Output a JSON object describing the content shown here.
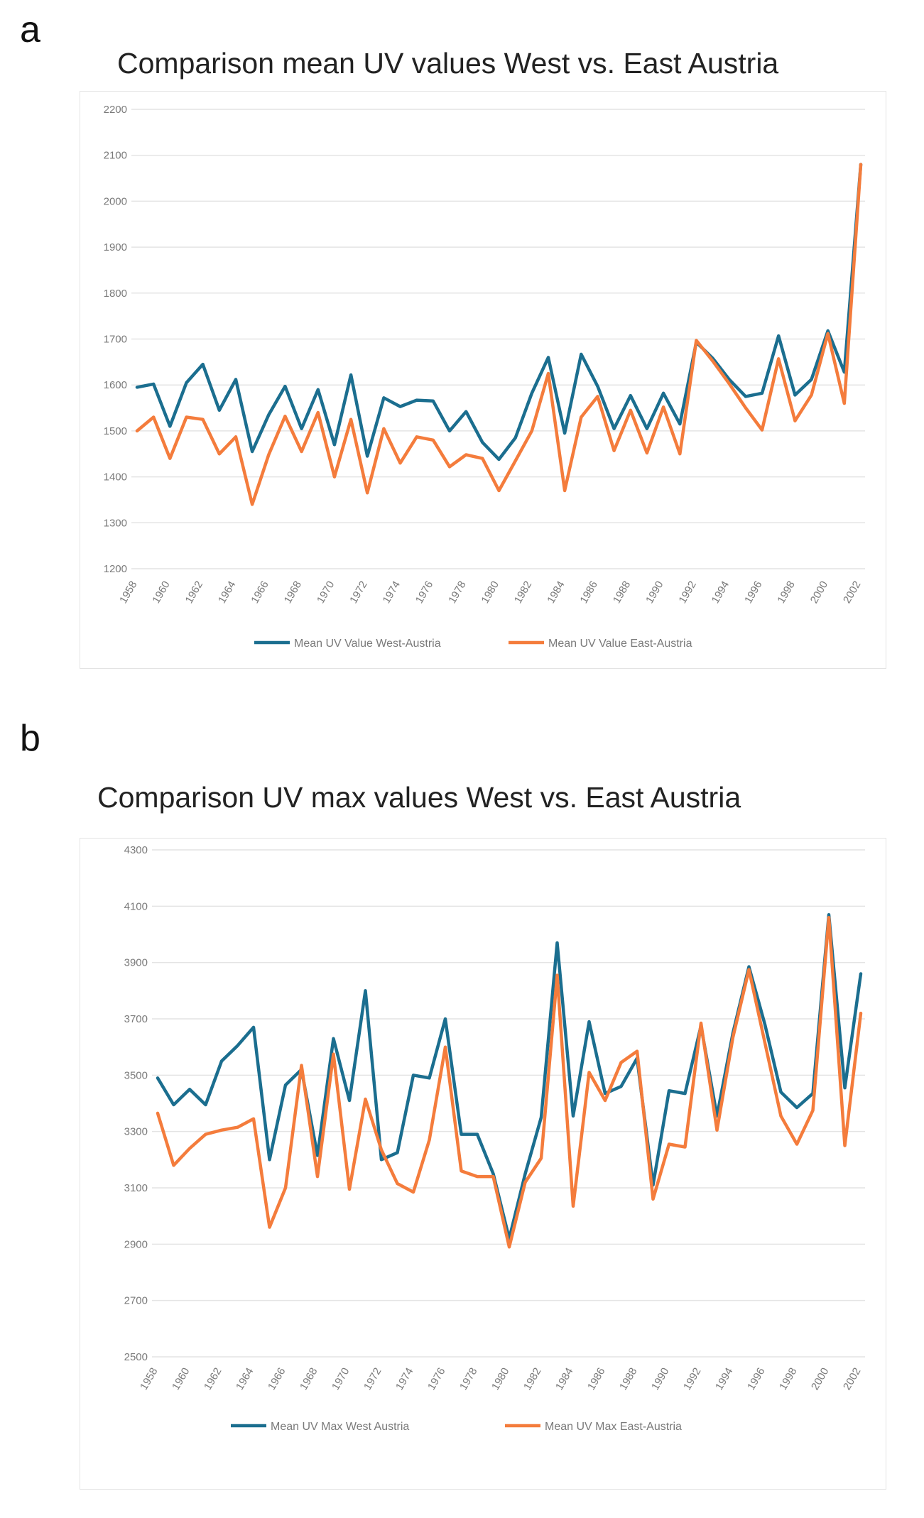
{
  "panels": [
    {
      "label": "a",
      "title": "Comparison mean UV values West vs. East Austria",
      "chart_data": {
        "type": "line",
        "title": "Comparison mean UV values West vs. East Austria",
        "x": [
          1958,
          1959,
          1960,
          1961,
          1962,
          1963,
          1964,
          1965,
          1966,
          1967,
          1968,
          1969,
          1970,
          1971,
          1972,
          1973,
          1974,
          1975,
          1976,
          1977,
          1978,
          1979,
          1980,
          1981,
          1982,
          1983,
          1984,
          1985,
          1986,
          1987,
          1988,
          1989,
          1990,
          1991,
          1992,
          1993,
          1994,
          1995,
          1996,
          1997,
          1998,
          1999,
          2000,
          2001,
          2002
        ],
        "x_tick_labels": [
          "1958",
          "1960",
          "1962",
          "1964",
          "1966",
          "1968",
          "1970",
          "1972",
          "1974",
          "1976",
          "1978",
          "1980",
          "1982",
          "1984",
          "1986",
          "1988",
          "1990",
          "1992",
          "1994",
          "1996",
          "1998",
          "2000",
          "2002"
        ],
        "ylim": [
          1200,
          2200
        ],
        "y_ticks": [
          1200,
          1300,
          1400,
          1500,
          1600,
          1700,
          1800,
          1900,
          2000,
          2100,
          2200
        ],
        "grid": true,
        "legend_position": "bottom",
        "series": [
          {
            "name": "Mean UV Value West-Austria",
            "color": "#1b6e8f",
            "values": [
              1595,
              1602,
              1510,
              1605,
              1645,
              1545,
              1612,
              1455,
              1535,
              1597,
              1505,
              1590,
              1470,
              1622,
              1445,
              1572,
              1553,
              1567,
              1565,
              1500,
              1542,
              1475,
              1438,
              1485,
              1582,
              1660,
              1495,
              1667,
              1597,
              1505,
              1577,
              1505,
              1582,
              1515,
              1693,
              1658,
              1612,
              1575,
              1582,
              1707,
              1578,
              1612,
              1718,
              1628,
              2080
            ]
          },
          {
            "name": "Mean UV Value East-Austria",
            "color": "#f47c3c",
            "values": [
              1500,
              1530,
              1440,
              1530,
              1525,
              1450,
              1487,
              1340,
              1448,
              1532,
              1455,
              1540,
              1400,
              1525,
              1365,
              1505,
              1430,
              1487,
              1480,
              1422,
              1448,
              1440,
              1370,
              1435,
              1500,
              1625,
              1370,
              1530,
              1575,
              1457,
              1545,
              1452,
              1552,
              1450,
              1697,
              1652,
              1603,
              1550,
              1502,
              1657,
              1522,
              1578,
              1712,
              1560,
              2080
            ]
          }
        ]
      }
    },
    {
      "label": "b",
      "title": "Comparison UV max values West vs. East Austria",
      "chart_data": {
        "type": "line",
        "title": "Comparison UV max values West vs. East Austria",
        "x": [
          1958,
          1959,
          1960,
          1961,
          1962,
          1963,
          1964,
          1965,
          1966,
          1967,
          1968,
          1969,
          1970,
          1971,
          1972,
          1973,
          1974,
          1975,
          1976,
          1977,
          1978,
          1979,
          1980,
          1981,
          1982,
          1983,
          1984,
          1985,
          1986,
          1987,
          1988,
          1989,
          1990,
          1991,
          1992,
          1993,
          1994,
          1995,
          1996,
          1997,
          1998,
          1999,
          2000,
          2001,
          2002
        ],
        "x_tick_labels": [
          "1958",
          "1960",
          "1962",
          "1964",
          "1966",
          "1968",
          "1970",
          "1972",
          "1974",
          "1976",
          "1978",
          "1980",
          "1982",
          "1984",
          "1986",
          "1988",
          "1990",
          "1992",
          "1994",
          "1996",
          "1998",
          "2000",
          "2002"
        ],
        "ylim": [
          2500,
          4300
        ],
        "y_ticks": [
          2500,
          2700,
          2900,
          3100,
          3300,
          3500,
          3700,
          3900,
          4100,
          4300
        ],
        "grid": true,
        "legend_position": "bottom",
        "series": [
          {
            "name": "Mean UV Max West Austria",
            "color": "#1b6e8f",
            "values": [
              3490,
              3395,
              3450,
              3395,
              3550,
              3605,
              3670,
              3200,
              3465,
              3520,
              3215,
              3630,
              3410,
              3800,
              3200,
              3225,
              3500,
              3490,
              3700,
              3290,
              3290,
              3150,
              2920,
              3150,
              3350,
              3970,
              3355,
              3690,
              3435,
              3460,
              3560,
              3110,
              3445,
              3435,
              3675,
              3355,
              3650,
              3885,
              3680,
              3440,
              3385,
              3435,
              4070,
              3455,
              3860
            ]
          },
          {
            "name": "Mean UV Max East-Austria",
            "color": "#f47c3c",
            "values": [
              3365,
              3180,
              3240,
              3290,
              3305,
              3315,
              3345,
              2960,
              3100,
              3535,
              3140,
              3575,
              3095,
              3415,
              3235,
              3115,
              3085,
              3270,
              3600,
              3160,
              3140,
              3140,
              2890,
              3120,
              3205,
              3855,
              3035,
              3510,
              3410,
              3545,
              3585,
              3060,
              3255,
              3245,
              3685,
              3305,
              3635,
              3875,
              3615,
              3355,
              3255,
              3375,
              4060,
              3250,
              3720
            ]
          }
        ]
      }
    }
  ]
}
